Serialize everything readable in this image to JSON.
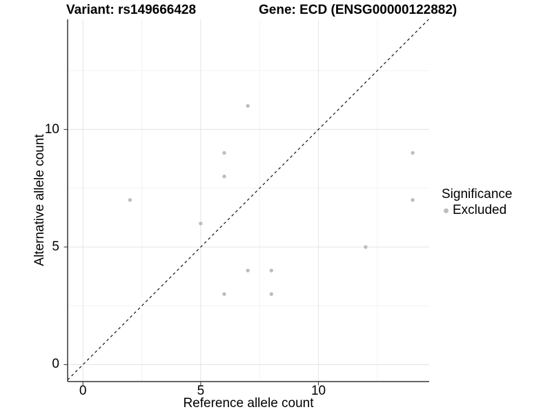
{
  "header": {
    "title_left": "Variant: rs149666428",
    "title_right": "Gene: ECD (ENSG00000122882)"
  },
  "chart_data": {
    "type": "scatter",
    "xlabel": "Reference allele count",
    "ylabel": "Alternative allele count",
    "x_ticks": [
      0,
      5,
      10
    ],
    "y_ticks": [
      0,
      5,
      10
    ],
    "x_minor_gridlines": [
      2.5,
      7.5,
      12.5
    ],
    "y_minor_gridlines": [
      2.5,
      7.5,
      12.5
    ],
    "xlim": [
      -0.65,
      14.7
    ],
    "ylim": [
      -0.72,
      14.68
    ],
    "grid": true,
    "identity_line": {
      "equation": "y = x",
      "style": "dashed",
      "color": "#111111"
    },
    "series": [
      {
        "name": "Excluded",
        "color": "#bdbdbd",
        "points": [
          [
            2,
            7
          ],
          [
            5,
            6
          ],
          [
            6,
            3
          ],
          [
            6,
            8
          ],
          [
            6,
            9
          ],
          [
            7,
            4
          ],
          [
            7,
            11
          ],
          [
            8,
            3
          ],
          [
            8,
            4
          ],
          [
            12,
            5
          ],
          [
            14,
            7
          ],
          [
            14,
            9
          ]
        ]
      }
    ],
    "legend": {
      "title": "Significance",
      "position": "right",
      "items": [
        {
          "label": "Excluded",
          "color": "#bdbdbd"
        }
      ]
    }
  },
  "colors": {
    "background": "#ffffff",
    "point": "#bdbdbd",
    "grid_major": "#e4e4e4",
    "grid_minor": "#f2f2f2",
    "axis_line": "#333333",
    "text": "#000000"
  }
}
